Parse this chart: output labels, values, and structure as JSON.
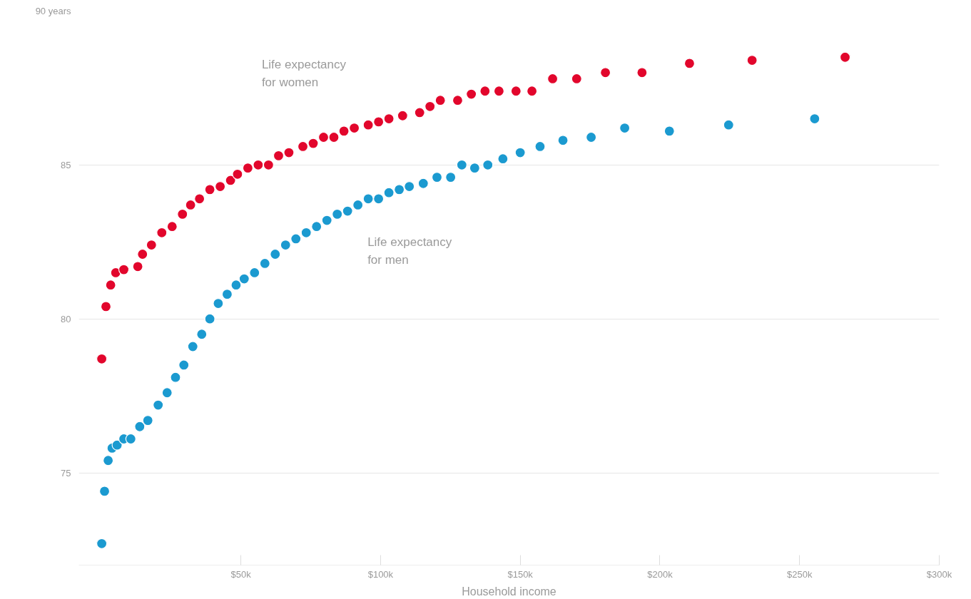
{
  "chart_data": {
    "type": "scatter",
    "xlabel": "Household income",
    "xlim": [
      -8,
      300
    ],
    "xticks": [
      {
        "value": 50,
        "label": "$50k"
      },
      {
        "value": 100,
        "label": "$100k"
      },
      {
        "value": 150,
        "label": "$150k"
      },
      {
        "value": 200,
        "label": "$200k"
      },
      {
        "value": 250,
        "label": "$250k"
      },
      {
        "value": 300,
        "label": "$300k"
      }
    ],
    "ylim": [
      72,
      90
    ],
    "yticks": [
      75,
      80,
      85,
      {
        "value": 90,
        "label": "90 years"
      }
    ],
    "grid": "y",
    "marker": "circle",
    "series": [
      {
        "name": "Life expectancy\nfor women",
        "color": "#e2062c",
        "x": [
          0.2,
          1.7,
          3.4,
          5.2,
          8.1,
          13.1,
          14.8,
          18,
          21.7,
          25.4,
          29.1,
          32,
          35.2,
          38.9,
          42.6,
          46.3,
          48.8,
          52.5,
          56.2,
          59.9,
          63.5,
          67.2,
          72.2,
          75.9,
          79.6,
          83.3,
          86.9,
          90.6,
          95.6,
          99.3,
          103,
          107.9,
          114,
          117.7,
          121.4,
          127.6,
          132.5,
          137.4,
          142.4,
          148.5,
          154.2,
          161.6,
          170.2,
          180.5,
          193.6,
          210.6,
          233,
          266.3
        ],
        "values": [
          78.7,
          80.4,
          81.1,
          81.5,
          81.6,
          81.7,
          82.1,
          82.4,
          82.8,
          83.0,
          83.4,
          83.7,
          83.9,
          84.2,
          84.3,
          84.5,
          84.7,
          84.9,
          85.0,
          85.0,
          85.3,
          85.4,
          85.6,
          85.7,
          85.9,
          85.9,
          86.1,
          86.2,
          86.3,
          86.4,
          86.5,
          86.6,
          86.7,
          86.9,
          87.1,
          87.1,
          87.3,
          87.4,
          87.4,
          87.4,
          87.4,
          87.8,
          87.8,
          88.0,
          88.0,
          88.3,
          88.4,
          88.5
        ]
      },
      {
        "name": "Life expectancy\nfor men",
        "color": "#1b9ad0",
        "x": [
          0.2,
          1.2,
          2.5,
          3.9,
          5.7,
          8.1,
          10.6,
          13.8,
          16.7,
          20.4,
          23.6,
          26.6,
          29.6,
          32.8,
          36,
          38.9,
          41.9,
          45.1,
          48.3,
          51.2,
          54.9,
          58.6,
          62.3,
          66,
          69.7,
          73.4,
          77.1,
          80.8,
          84.5,
          88.2,
          91.9,
          95.6,
          99.3,
          103,
          106.7,
          110.3,
          115.3,
          120.2,
          125.1,
          129.1,
          133.7,
          138.4,
          143.8,
          150,
          157.1,
          165.3,
          175.4,
          187.4,
          203.4,
          224.6,
          255.4
        ],
        "values": [
          72.7,
          74.4,
          75.4,
          75.8,
          75.9,
          76.1,
          76.1,
          76.5,
          76.7,
          77.2,
          77.6,
          78.1,
          78.5,
          79.1,
          79.5,
          80.0,
          80.5,
          80.8,
          81.1,
          81.3,
          81.5,
          81.8,
          82.1,
          82.4,
          82.6,
          82.8,
          83.0,
          83.2,
          83.4,
          83.5,
          83.7,
          83.9,
          83.9,
          84.1,
          84.2,
          84.3,
          84.4,
          84.6,
          84.6,
          85.0,
          84.9,
          85.0,
          85.2,
          85.4,
          85.6,
          85.8,
          85.9,
          86.2,
          86.1,
          86.3,
          86.5
        ]
      }
    ]
  }
}
